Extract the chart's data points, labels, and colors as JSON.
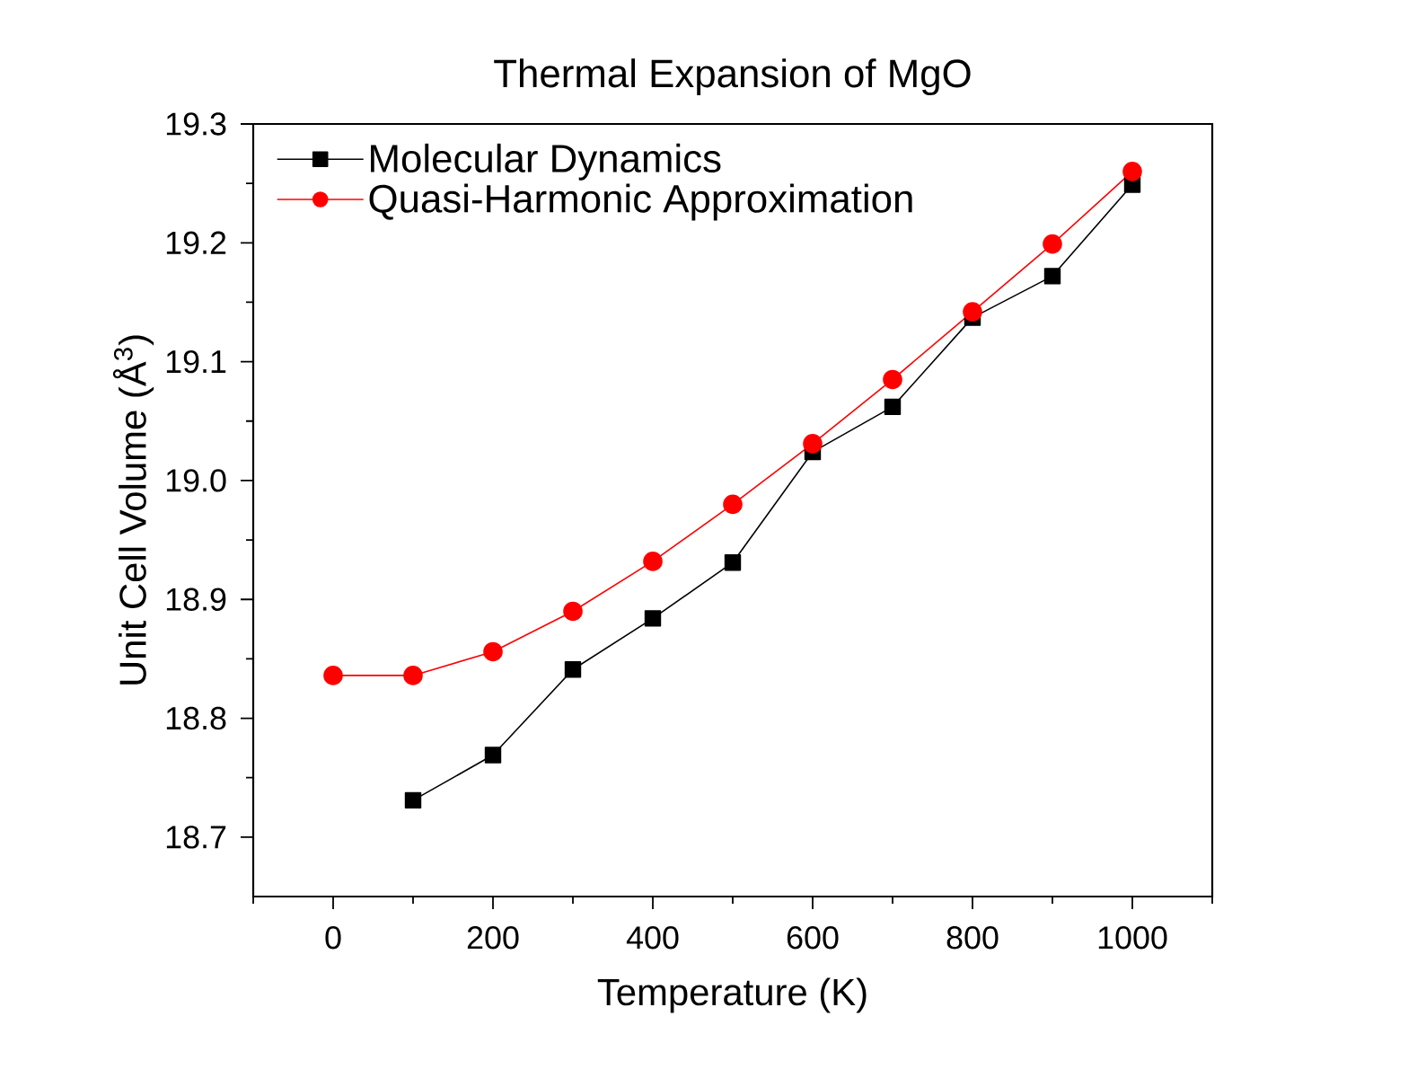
{
  "chart_data": {
    "type": "line",
    "title": "Thermal Expansion of MgO",
    "xlabel": "Temperature (K)",
    "ylabel": "Unit Cell Volume (Å$^{3}$)",
    "x": [
      0,
      100,
      200,
      300,
      400,
      500,
      600,
      700,
      800,
      900,
      1000
    ],
    "series": [
      {
        "name": "Molecular Dynamics",
        "color": "#000000",
        "marker": "square",
        "values": [
          null,
          18.731,
          18.769,
          18.841,
          18.884,
          18.931,
          19.024,
          19.062,
          19.137,
          19.172,
          19.249
        ]
      },
      {
        "name": "Quasi-Harmonic Approximation",
        "color": "#ff0000",
        "marker": "circle",
        "values": [
          18.836,
          18.836,
          18.856,
          18.89,
          18.932,
          18.98,
          19.031,
          19.085,
          19.142,
          19.199,
          19.26
        ]
      }
    ],
    "xlim": [
      -100,
      1100
    ],
    "ylim": [
      18.65,
      19.3
    ],
    "xticks": [
      {
        "value": -100,
        "label": null
      },
      0,
      {
        "value": 100,
        "label": null
      },
      200,
      {
        "value": 300,
        "label": null
      },
      400,
      {
        "value": 500,
        "label": null
      },
      600,
      {
        "value": 700,
        "label": null
      },
      800,
      {
        "value": 900,
        "label": null
      },
      1000,
      {
        "value": 1100,
        "label": null
      }
    ],
    "yticks": [
      18.7,
      {
        "value": 18.75,
        "label": null
      },
      18.8,
      {
        "value": 18.85,
        "label": null
      },
      18.9,
      {
        "value": 18.95,
        "label": null
      },
      {
        "value": 19.0,
        "label": "19.0"
      },
      {
        "value": 19.05,
        "label": null
      },
      19.1,
      {
        "value": 19.15,
        "label": null
      },
      19.2,
      {
        "value": 19.25,
        "label": null
      },
      19.3
    ],
    "legend": "top left"
  }
}
